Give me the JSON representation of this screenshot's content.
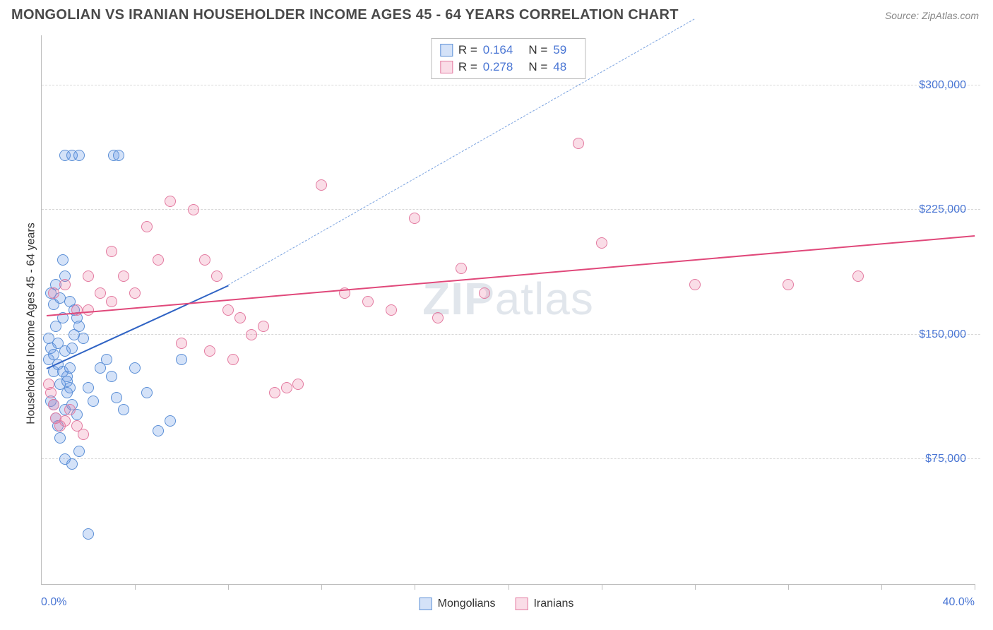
{
  "title": "MONGOLIAN VS IRANIAN HOUSEHOLDER INCOME AGES 45 - 64 YEARS CORRELATION CHART",
  "source": "Source: ZipAtlas.com",
  "watermark_bold": "ZIP",
  "watermark_rest": "atlas",
  "chart": {
    "type": "scatter",
    "xlim": [
      0,
      40
    ],
    "ylim": [
      0,
      330000
    ],
    "xaxis_min_label": "0.0%",
    "xaxis_max_label": "40.0%",
    "ylabel": "Householder Income Ages 45 - 64 years",
    "ytick_values": [
      75000,
      150000,
      225000,
      300000
    ],
    "ytick_labels": [
      "$75,000",
      "$150,000",
      "$225,000",
      "$300,000"
    ],
    "xtick_positions": [
      4,
      8,
      12,
      16,
      20,
      24,
      28,
      32,
      36,
      40
    ],
    "grid_color": "#d8d8d8",
    "axis_color": "#bdbdbd",
    "ylabel_color": "#333333",
    "tick_label_color": "#4a76d4",
    "background_color": "#ffffff",
    "marker_radius": 8,
    "marker_stroke_width": 1.5,
    "series": [
      {
        "name": "Mongolians",
        "fill": "rgba(100,150,230,0.28)",
        "stroke": "#5b8fd6",
        "r_value": "0.164",
        "n_value": "59",
        "trend_solid": {
          "x1": 0.2,
          "y1": 130000,
          "x2": 8.0,
          "y2": 180000,
          "color": "#2f63c4"
        },
        "trend_dashed": {
          "x1": 8.0,
          "y1": 180000,
          "x2": 28.0,
          "y2": 340000,
          "color": "#7ba3e0"
        },
        "points": [
          [
            0.3,
            135000
          ],
          [
            0.5,
            128000
          ],
          [
            0.6,
            155000
          ],
          [
            0.7,
            145000
          ],
          [
            0.8,
            120000
          ],
          [
            0.4,
            110000
          ],
          [
            0.9,
            160000
          ],
          [
            1.0,
            140000
          ],
          [
            1.1,
            125000
          ],
          [
            1.2,
            118000
          ],
          [
            0.5,
            108000
          ],
          [
            0.6,
            100000
          ],
          [
            0.7,
            95000
          ],
          [
            0.8,
            88000
          ],
          [
            1.0,
            105000
          ],
          [
            1.1,
            115000
          ],
          [
            1.2,
            130000
          ],
          [
            1.3,
            142000
          ],
          [
            1.4,
            150000
          ],
          [
            1.5,
            160000
          ],
          [
            1.0,
            75000
          ],
          [
            1.3,
            72000
          ],
          [
            1.6,
            80000
          ],
          [
            0.9,
            195000
          ],
          [
            1.2,
            170000
          ],
          [
            1.4,
            165000
          ],
          [
            1.6,
            155000
          ],
          [
            1.8,
            148000
          ],
          [
            2.0,
            118000
          ],
          [
            2.2,
            110000
          ],
          [
            1.0,
            258000
          ],
          [
            1.3,
            258000
          ],
          [
            1.6,
            258000
          ],
          [
            3.1,
            258000
          ],
          [
            3.3,
            258000
          ],
          [
            2.5,
            130000
          ],
          [
            2.8,
            135000
          ],
          [
            3.0,
            125000
          ],
          [
            3.2,
            112000
          ],
          [
            3.5,
            105000
          ],
          [
            4.0,
            130000
          ],
          [
            4.5,
            115000
          ],
          [
            5.0,
            92000
          ],
          [
            5.5,
            98000
          ],
          [
            6.0,
            135000
          ],
          [
            2.0,
            30000
          ],
          [
            0.4,
            175000
          ],
          [
            0.5,
            168000
          ],
          [
            0.6,
            180000
          ],
          [
            0.8,
            172000
          ],
          [
            1.0,
            185000
          ],
          [
            0.3,
            148000
          ],
          [
            0.4,
            142000
          ],
          [
            0.5,
            138000
          ],
          [
            0.7,
            132000
          ],
          [
            0.9,
            128000
          ],
          [
            1.1,
            122000
          ],
          [
            1.3,
            108000
          ],
          [
            1.5,
            102000
          ]
        ]
      },
      {
        "name": "Iranians",
        "fill": "rgba(235,120,160,0.25)",
        "stroke": "#e37aa0",
        "r_value": "0.278",
        "n_value": "48",
        "trend_solid": {
          "x1": 0.2,
          "y1": 162000,
          "x2": 40.0,
          "y2": 210000,
          "color": "#e0487a"
        },
        "points": [
          [
            0.5,
            175000
          ],
          [
            1.0,
            180000
          ],
          [
            1.5,
            165000
          ],
          [
            2.0,
            185000
          ],
          [
            2.5,
            175000
          ],
          [
            3.0,
            200000
          ],
          [
            3.5,
            185000
          ],
          [
            4.0,
            175000
          ],
          [
            4.5,
            215000
          ],
          [
            5.0,
            195000
          ],
          [
            5.5,
            230000
          ],
          [
            6.5,
            225000
          ],
          [
            7.0,
            195000
          ],
          [
            7.5,
            185000
          ],
          [
            8.0,
            165000
          ],
          [
            8.5,
            160000
          ],
          [
            9.0,
            150000
          ],
          [
            9.5,
            155000
          ],
          [
            10.0,
            115000
          ],
          [
            10.5,
            118000
          ],
          [
            11.0,
            120000
          ],
          [
            12.0,
            240000
          ],
          [
            13.0,
            175000
          ],
          [
            14.0,
            170000
          ],
          [
            15.0,
            165000
          ],
          [
            16.0,
            220000
          ],
          [
            17.0,
            160000
          ],
          [
            18.0,
            190000
          ],
          [
            19.0,
            175000
          ],
          [
            23.0,
            265000
          ],
          [
            24.0,
            205000
          ],
          [
            28.0,
            180000
          ],
          [
            32.0,
            180000
          ],
          [
            35.0,
            185000
          ],
          [
            6.0,
            145000
          ],
          [
            7.2,
            140000
          ],
          [
            8.2,
            135000
          ],
          [
            0.3,
            120000
          ],
          [
            0.4,
            115000
          ],
          [
            0.5,
            108000
          ],
          [
            0.6,
            100000
          ],
          [
            0.8,
            95000
          ],
          [
            1.0,
            98000
          ],
          [
            1.2,
            105000
          ],
          [
            1.5,
            95000
          ],
          [
            1.8,
            90000
          ],
          [
            2.0,
            165000
          ],
          [
            3.0,
            170000
          ]
        ]
      }
    ]
  },
  "stats_box": {
    "r_label": "R =",
    "n_label": "N ="
  },
  "bottom_legend": [
    {
      "label": "Mongolians",
      "series_index": 0
    },
    {
      "label": "Iranians",
      "series_index": 1
    }
  ]
}
